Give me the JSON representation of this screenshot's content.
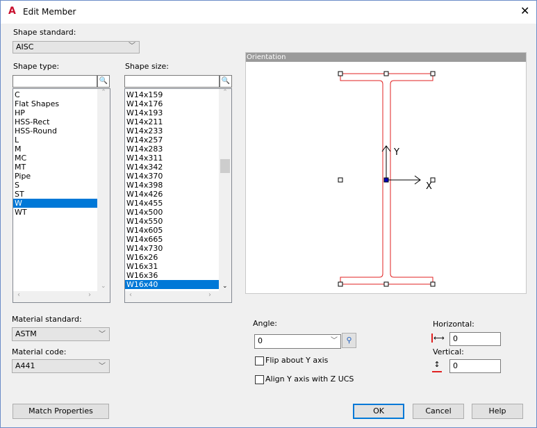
{
  "window": {
    "title": "Edit Member",
    "app_icon": "autocad-logo-icon",
    "close_icon": "close-icon"
  },
  "shape_standard": {
    "label": "Shape standard:",
    "value": "AISC"
  },
  "shape_type": {
    "label": "Shape type:",
    "search_value": "",
    "items": [
      "C",
      "Flat Shapes",
      "HP",
      "HSS-Rect",
      "HSS-Round",
      "L",
      "M",
      "MC",
      "MT",
      "Pipe",
      "S",
      "ST",
      "W",
      "WT"
    ],
    "selected": "W"
  },
  "shape_size": {
    "label": "Shape size:",
    "search_value": "",
    "items": [
      "W14x159",
      "W14x176",
      "W14x193",
      "W14x211",
      "W14x233",
      "W14x257",
      "W14x283",
      "W14x311",
      "W14x342",
      "W14x370",
      "W14x398",
      "W14x426",
      "W14x455",
      "W14x500",
      "W14x550",
      "W14x605",
      "W14x665",
      "W14x730",
      "W16x26",
      "W16x31",
      "W16x36",
      "W16x40"
    ],
    "selected": "W16x40"
  },
  "orientation": {
    "title": "Orientation",
    "y_label": "Y",
    "x_label": "X",
    "profile_color": "#e02020",
    "center_color": "#0000c0"
  },
  "material_standard": {
    "label": "Material standard:",
    "value": "ASTM"
  },
  "material_code": {
    "label": "Material code:",
    "value": "A441"
  },
  "angle": {
    "label": "Angle:",
    "value": "0"
  },
  "flip": {
    "label": "Flip about Y axis",
    "checked": false
  },
  "align": {
    "label": "Align Y axis with Z UCS",
    "checked": false
  },
  "horizontal": {
    "label": "Horizontal:",
    "value": "0"
  },
  "vertical": {
    "label": "Vertical:",
    "value": "0"
  },
  "buttons": {
    "match": "Match Properties",
    "ok": "OK",
    "cancel": "Cancel",
    "help": "Help"
  }
}
